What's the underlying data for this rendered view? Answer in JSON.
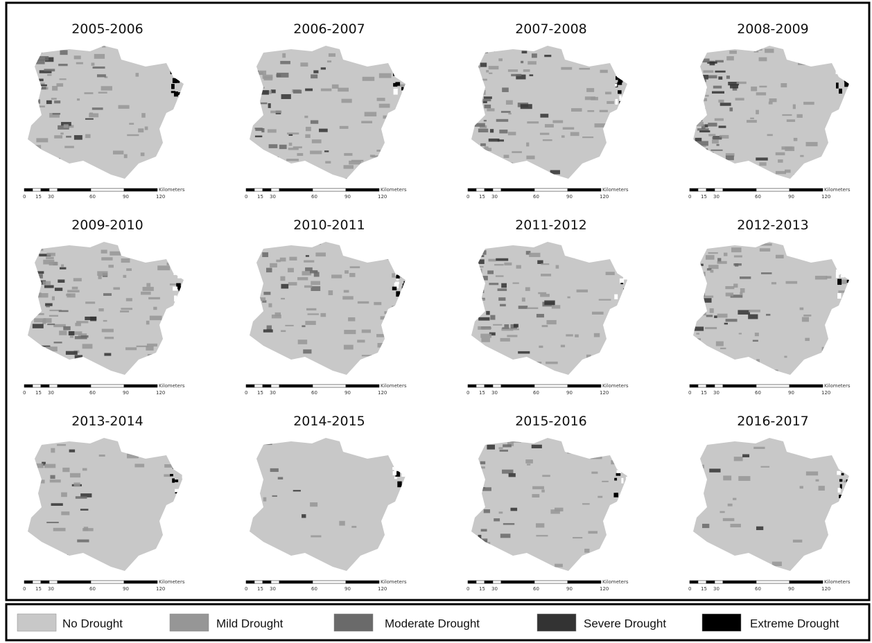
{
  "maps": [
    {
      "title": "2005-2006"
    },
    {
      "title": "2006-2007"
    },
    {
      "title": "2007-2008"
    },
    {
      "title": "2008-2009"
    },
    {
      "title": "2009-2010"
    },
    {
      "title": "2010-2011"
    },
    {
      "title": "2011-2012"
    },
    {
      "title": "2012-2013"
    },
    {
      "title": "2013-2014"
    },
    {
      "title": "2014-2015"
    },
    {
      "title": "2015-2016"
    },
    {
      "title": "2016-2017"
    }
  ],
  "scale": {
    "ticks": [
      "0",
      "15",
      "30",
      "60",
      "90",
      "120"
    ],
    "unit": "Kilometers"
  },
  "legend": [
    {
      "label": "No Drought",
      "color": "#c8c8c8"
    },
    {
      "label": "Mild Drought",
      "color": "#969696"
    },
    {
      "label": "Moderate Drought",
      "color": "#6a6a6a"
    },
    {
      "label": "Severe Drought",
      "color": "#333333"
    },
    {
      "label": "Extreme Drought",
      "color": "#000000"
    }
  ]
}
